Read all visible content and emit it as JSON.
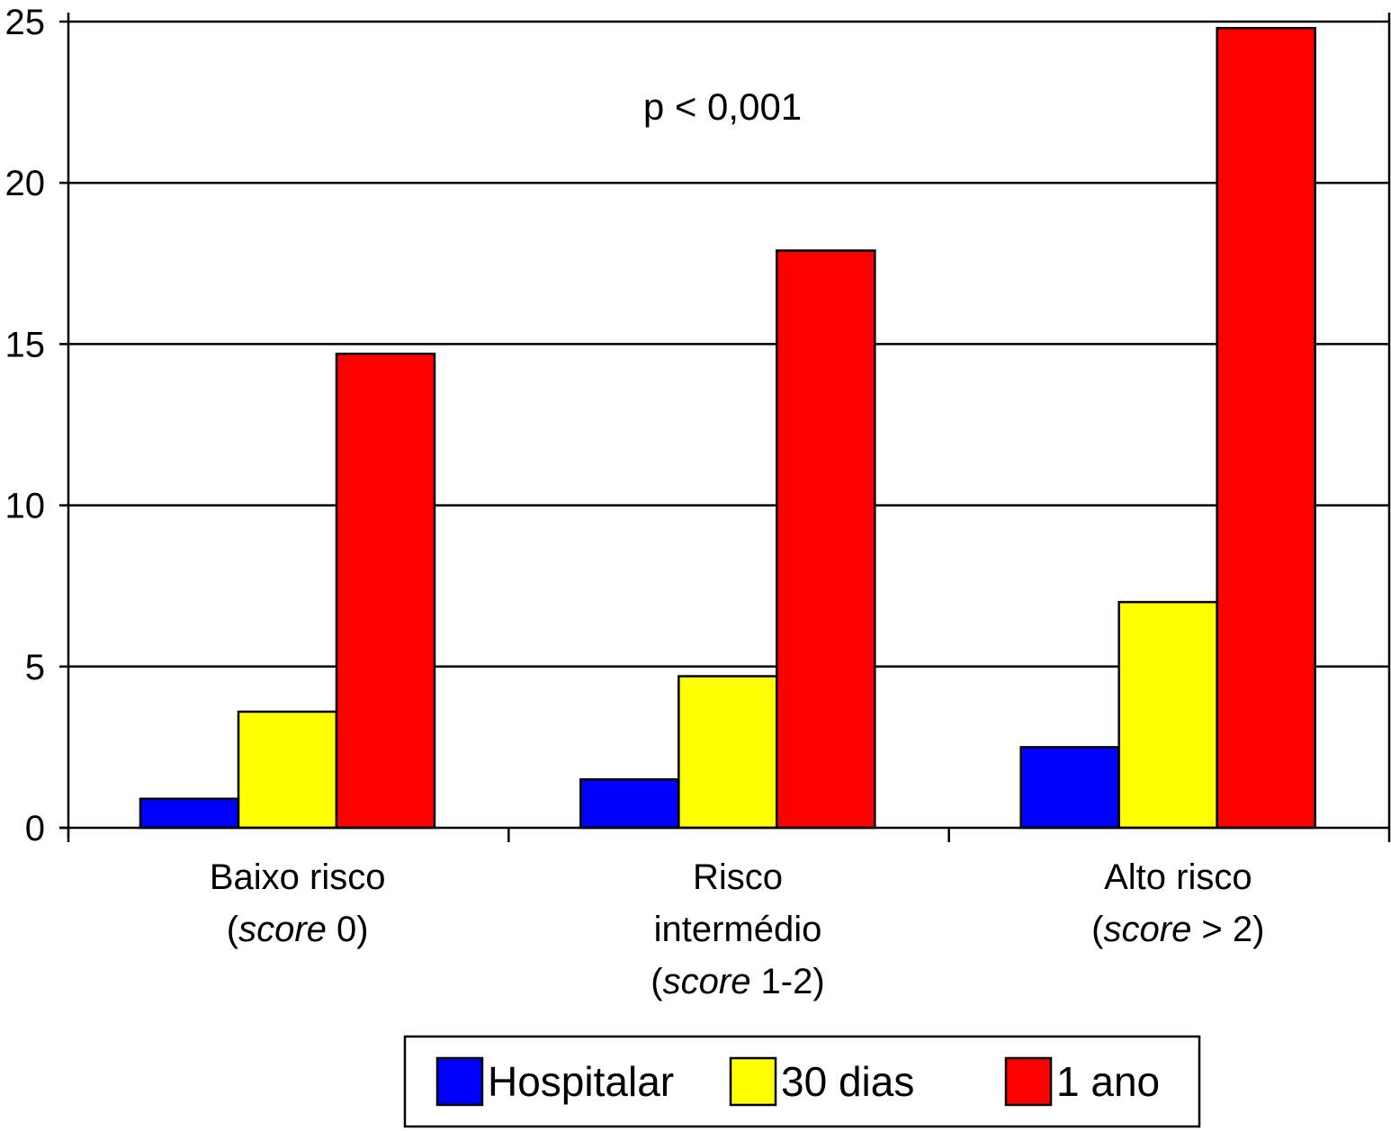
{
  "chart_data": {
    "type": "bar",
    "title": "",
    "xlabel": "",
    "ylabel": "",
    "ylim": [
      0,
      25
    ],
    "yticks": [
      0,
      5,
      10,
      15,
      20,
      25
    ],
    "grid": true,
    "annotation": "p < 0,001",
    "categories": [
      {
        "lines": [
          [
            {
              "t": "Baixo risco"
            }
          ],
          [
            {
              "t": "("
            },
            {
              "t": "score",
              "i": true
            },
            {
              "t": " 0)"
            }
          ]
        ]
      },
      {
        "lines": [
          [
            {
              "t": "Risco"
            }
          ],
          [
            {
              "t": "intermédio"
            }
          ],
          [
            {
              "t": "("
            },
            {
              "t": "score",
              "i": true
            },
            {
              "t": " 1-2)"
            }
          ]
        ]
      },
      {
        "lines": [
          [
            {
              "t": "Alto risco"
            }
          ],
          [
            {
              "t": "("
            },
            {
              "t": "score",
              "i": true
            },
            {
              "t": " > 2)"
            }
          ]
        ]
      }
    ],
    "series": [
      {
        "name": "Hospitalar",
        "color": "#0000ff",
        "values": [
          0.9,
          1.5,
          2.5
        ]
      },
      {
        "name": "30 dias",
        "color": "#ffff00",
        "values": [
          3.6,
          4.7,
          7.0
        ]
      },
      {
        "name": "1 ano",
        "color": "#ff0000",
        "values": [
          14.7,
          17.9,
          24.8
        ]
      }
    ],
    "legend": "bottom"
  }
}
